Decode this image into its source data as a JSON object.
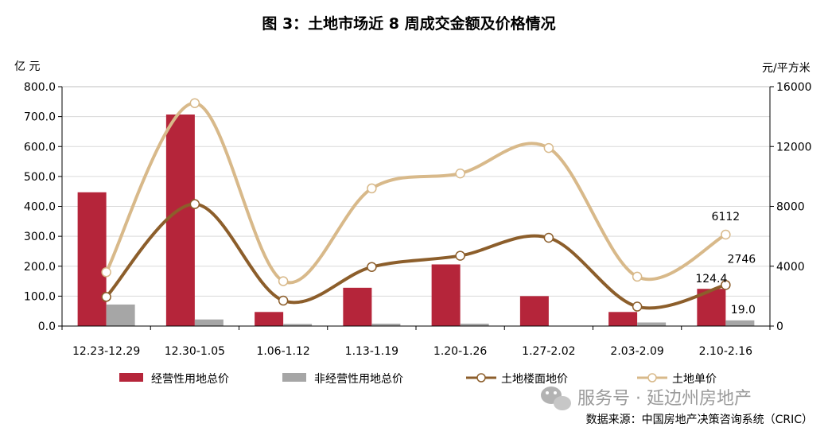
{
  "chart_data": {
    "type": "bar",
    "title": "图 3：土地市场近 8 周成交金额及价格情况",
    "y_left_unit": "亿 元",
    "y_right_unit": "元/平方米",
    "ylim_left": [
      0,
      800
    ],
    "ylim_right": [
      0,
      16000
    ],
    "y_left_ticks": [
      "0.0",
      "100.0",
      "200.0",
      "300.0",
      "400.0",
      "500.0",
      "600.0",
      "700.0",
      "800.0"
    ],
    "y_right_ticks": [
      "0",
      "4000",
      "8000",
      "12000",
      "16000"
    ],
    "categories": [
      "12.23-12.29",
      "12.30-1.05",
      "1.06-1.12",
      "1.13-1.19",
      "1.20-1.26",
      "1.27-2.02",
      "2.03-2.09",
      "2.10-2.16"
    ],
    "series": [
      {
        "name": "经营性用地总价",
        "kind": "bar",
        "axis": "left",
        "color": "#b5253a",
        "values": [
          447,
          707,
          47,
          128,
          206,
          100,
          47,
          124.4
        ]
      },
      {
        "name": "非经营性用地总价",
        "kind": "bar",
        "axis": "left",
        "color": "#a6a6a6",
        "values": [
          72,
          22,
          7,
          8,
          8,
          1,
          12,
          19.0
        ]
      },
      {
        "name": "土地楼面地价",
        "kind": "line",
        "axis": "right",
        "color": "#8c5e2b",
        "values": [
          1950,
          8150,
          1700,
          3950,
          4700,
          5900,
          1300,
          2746
        ]
      },
      {
        "name": "土地单价",
        "kind": "line",
        "axis": "right",
        "color": "#d8b98a",
        "values": [
          3600,
          14900,
          3000,
          9200,
          10200,
          11900,
          3300,
          6112
        ]
      }
    ],
    "data_labels": [
      {
        "series": 0,
        "index": 7,
        "text": "124.4"
      },
      {
        "series": 1,
        "index": 7,
        "text": "19.0"
      },
      {
        "series": 2,
        "index": 7,
        "text": "2746"
      },
      {
        "series": 3,
        "index": 7,
        "text": "6112"
      }
    ],
    "grid": true,
    "legend_position": "bottom"
  },
  "watermark": "服务号 · 延边州房地产",
  "source": "数据来源：中国房地产决策咨询系统（CRIC）"
}
